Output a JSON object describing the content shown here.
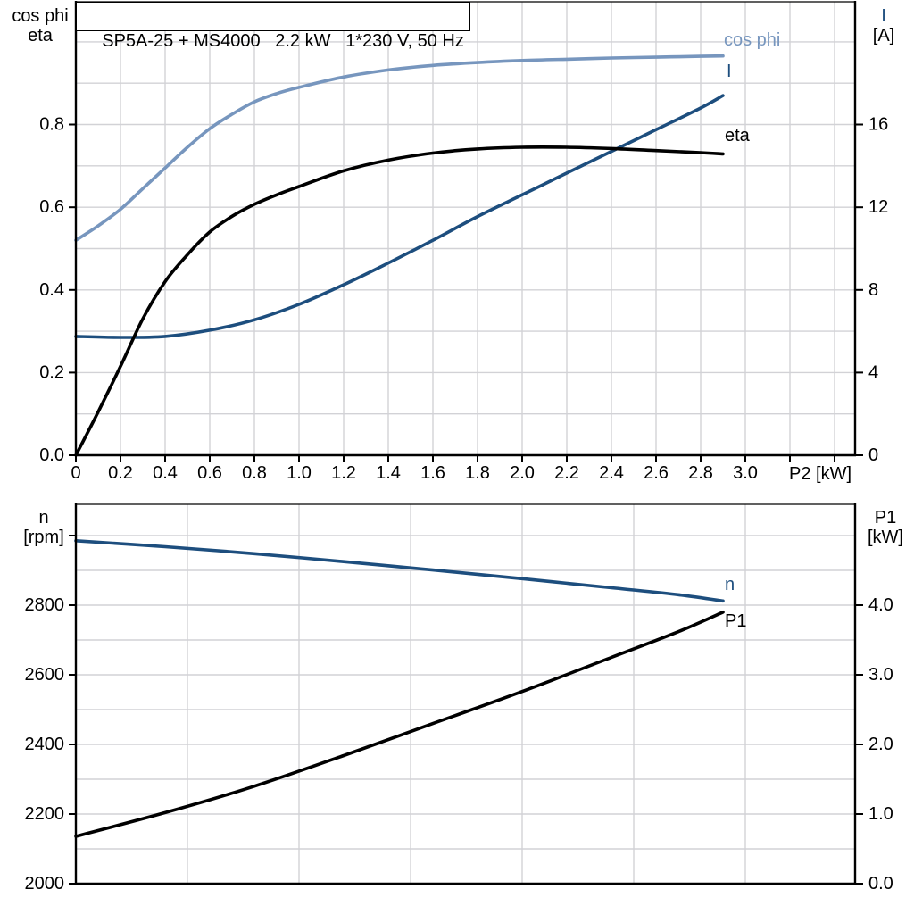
{
  "figure": {
    "title": "SP5A-25 + MS4000   2.2 kW   1*230 V, 50 Hz"
  },
  "colors": {
    "cos_phi_curve": "#7796be",
    "current_and_speed_curves": "#1d4e7e",
    "eta_and_power_curves": "#000000",
    "grid": "#d2d2d6",
    "axis": "#000000",
    "background": "#ffffff"
  },
  "chart_data": [
    {
      "id": "motor-electrical-curves",
      "type": "line",
      "grid": "on",
      "legend_position": "curve-end-labels",
      "x_axis": {
        "label": "P2 [kW]",
        "min": 0,
        "max": 3.492,
        "grid_step": 0.2,
        "show_ticks": true,
        "ticks": [
          [
            0,
            "0"
          ],
          [
            0.2,
            "0.2"
          ],
          [
            0.4,
            "0.4"
          ],
          [
            0.6,
            "0.6"
          ],
          [
            0.8,
            "0.8"
          ],
          [
            1.0,
            "1.0"
          ],
          [
            1.2,
            "1.2"
          ],
          [
            1.4,
            "1.4"
          ],
          [
            1.6,
            "1.6"
          ],
          [
            1.8,
            "1.8"
          ],
          [
            2.0,
            "2.0"
          ],
          [
            2.2,
            "2.2"
          ],
          [
            2.4,
            "2.4"
          ],
          [
            2.6,
            "2.6"
          ],
          [
            2.8,
            "2.8"
          ],
          [
            3.0,
            "3.0"
          ],
          [
            3.2,
            ""
          ],
          [
            3.4,
            ""
          ]
        ]
      },
      "left_axis": {
        "title_lines": [
          "cos phi",
          "eta"
        ],
        "min": 0,
        "max": 1.097,
        "grid_step": 0.1,
        "ticks": [
          [
            0,
            "0.0"
          ],
          [
            0.2,
            "0.2"
          ],
          [
            0.4,
            "0.4"
          ],
          [
            0.6,
            "0.6"
          ],
          [
            0.8,
            "0.8"
          ]
        ]
      },
      "right_axis": {
        "title_lines": [
          "I",
          "[A]"
        ],
        "min": 0,
        "max": 21.94,
        "grid_step": 2,
        "ticks": [
          [
            0,
            "0"
          ],
          [
            4,
            "4"
          ],
          [
            8,
            "8"
          ],
          [
            12,
            "12"
          ],
          [
            16,
            "16"
          ]
        ]
      },
      "series": [
        {
          "name": "cos phi",
          "axis": "left",
          "color": "#7796be",
          "label": {
            "text": "cos phi",
            "x": 2.908,
            "y": 1.005
          },
          "points": [
            [
              0,
              0.52
            ],
            [
              0.1,
              0.555
            ],
            [
              0.2,
              0.595
            ],
            [
              0.3,
              0.645
            ],
            [
              0.4,
              0.695
            ],
            [
              0.5,
              0.745
            ],
            [
              0.6,
              0.79
            ],
            [
              0.7,
              0.825
            ],
            [
              0.8,
              0.855
            ],
            [
              0.9,
              0.875
            ],
            [
              1.0,
              0.89
            ],
            [
              1.2,
              0.915
            ],
            [
              1.4,
              0.932
            ],
            [
              1.6,
              0.943
            ],
            [
              1.8,
              0.95
            ],
            [
              2.0,
              0.955
            ],
            [
              2.2,
              0.958
            ],
            [
              2.4,
              0.961
            ],
            [
              2.6,
              0.963
            ],
            [
              2.8,
              0.965
            ],
            [
              2.9,
              0.966
            ]
          ]
        },
        {
          "name": "I",
          "axis": "right",
          "color": "#1d4e7e",
          "label": {
            "text": "I",
            "x": 2.92,
            "y": 18.55
          },
          "points": [
            [
              0,
              5.75
            ],
            [
              0.2,
              5.7
            ],
            [
              0.4,
              5.75
            ],
            [
              0.6,
              6.05
            ],
            [
              0.8,
              6.55
            ],
            [
              1.0,
              7.3
            ],
            [
              1.2,
              8.25
            ],
            [
              1.4,
              9.3
            ],
            [
              1.6,
              10.4
            ],
            [
              1.8,
              11.55
            ],
            [
              2.0,
              12.6
            ],
            [
              2.2,
              13.65
            ],
            [
              2.4,
              14.7
            ],
            [
              2.6,
              15.75
            ],
            [
              2.8,
              16.8
            ],
            [
              2.9,
              17.4
            ]
          ]
        },
        {
          "name": "eta",
          "axis": "left",
          "color": "#000000",
          "label": {
            "text": "eta",
            "x": 2.91,
            "y": 0.772
          },
          "points": [
            [
              0,
              0
            ],
            [
              0.1,
              0.105
            ],
            [
              0.2,
              0.215
            ],
            [
              0.3,
              0.33
            ],
            [
              0.4,
              0.42
            ],
            [
              0.5,
              0.485
            ],
            [
              0.6,
              0.54
            ],
            [
              0.7,
              0.578
            ],
            [
              0.8,
              0.607
            ],
            [
              0.9,
              0.63
            ],
            [
              1.0,
              0.65
            ],
            [
              1.2,
              0.688
            ],
            [
              1.4,
              0.714
            ],
            [
              1.6,
              0.731
            ],
            [
              1.8,
              0.741
            ],
            [
              2.0,
              0.745
            ],
            [
              2.2,
              0.745
            ],
            [
              2.4,
              0.742
            ],
            [
              2.6,
              0.737
            ],
            [
              2.8,
              0.732
            ],
            [
              2.9,
              0.729
            ]
          ]
        }
      ]
    },
    {
      "id": "speed-and-input-power-curves",
      "type": "line",
      "grid": "on",
      "legend_position": "curve-end-labels",
      "x_axis": {
        "label": "",
        "min": 0,
        "max": 3.492,
        "grid_step": 0.5,
        "show_ticks": false,
        "ticks": []
      },
      "left_axis": {
        "title_lines": [
          "n",
          "[rpm]"
        ],
        "min": 2000,
        "max": 3089.7,
        "grid_step": 100,
        "ticks": [
          [
            2000,
            "2000"
          ],
          [
            2200,
            "2200"
          ],
          [
            2400,
            "2400"
          ],
          [
            2600,
            "2600"
          ],
          [
            2800,
            "2800"
          ],
          [
            3000,
            ""
          ]
        ]
      },
      "right_axis": {
        "title_lines": [
          "P1",
          "[kW]"
        ],
        "min": 0,
        "max": 5.449,
        "grid_step": 0.5,
        "ticks": [
          [
            0,
            "0.0"
          ],
          [
            1,
            "1.0"
          ],
          [
            2,
            "2.0"
          ],
          [
            3,
            "3.0"
          ],
          [
            4,
            "4.0"
          ]
        ]
      },
      "series": [
        {
          "name": "n",
          "axis": "left",
          "color": "#1d4e7e",
          "label": {
            "text": "n",
            "x": 2.92,
            "y": 2860
          },
          "points": [
            [
              0,
              2985
            ],
            [
              0.4,
              2968
            ],
            [
              0.8,
              2948
            ],
            [
              1.2,
              2925
            ],
            [
              1.6,
              2901
            ],
            [
              2.0,
              2876
            ],
            [
              2.4,
              2850
            ],
            [
              2.7,
              2830
            ],
            [
              2.9,
              2812
            ]
          ]
        },
        {
          "name": "P1",
          "axis": "right",
          "color": "#000000",
          "label": {
            "text": "P1",
            "x": 2.91,
            "y": 3.77
          },
          "points": [
            [
              0,
              0.68
            ],
            [
              0.4,
              1.02
            ],
            [
              0.8,
              1.4
            ],
            [
              1.2,
              1.84
            ],
            [
              1.6,
              2.3
            ],
            [
              2.0,
              2.76
            ],
            [
              2.4,
              3.25
            ],
            [
              2.7,
              3.62
            ],
            [
              2.9,
              3.9
            ]
          ]
        }
      ]
    }
  ]
}
